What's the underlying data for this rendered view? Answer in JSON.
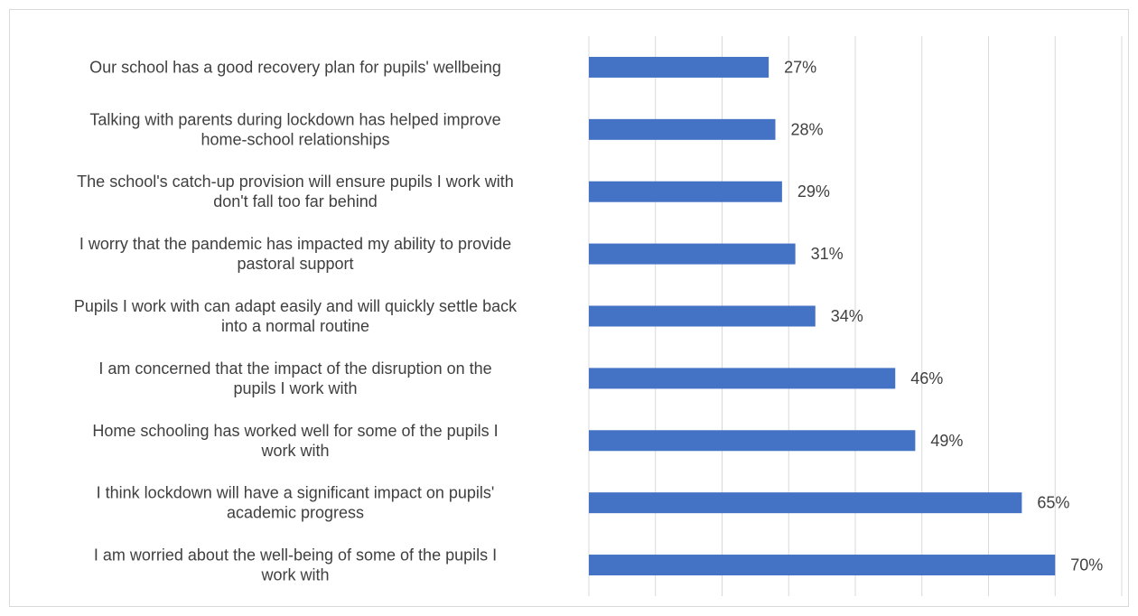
{
  "chart_data": {
    "type": "bar",
    "orientation": "horizontal",
    "title": "",
    "xlabel": "",
    "ylabel": "",
    "xlim": [
      0,
      80
    ],
    "grid": true,
    "legend": "none",
    "bar_color": "#4472c4",
    "categories": [
      [
        "Our school has a good recovery plan for pupils' wellbeing"
      ],
      [
        "Talking with parents during lockdown has helped improve",
        "home-school relationships"
      ],
      [
        "The school's catch-up provision will ensure pupils I work with",
        "don't fall too far behind"
      ],
      [
        "I worry that the pandemic has impacted my ability to provide",
        "pastoral support"
      ],
      [
        "Pupils I work with can adapt easily and will quickly settle back",
        "into a normal routine"
      ],
      [
        "I am concerned that the impact of the disruption on the",
        "pupils I work with"
      ],
      [
        "Home schooling has worked well for some of the pupils I",
        "work with"
      ],
      [
        "I think lockdown will have a significant impact on pupils'",
        "academic progress"
      ],
      [
        "I am worried about the well-being of some of the pupils I",
        "work with"
      ]
    ],
    "values": [
      27,
      28,
      29,
      31,
      34,
      46,
      49,
      65,
      70
    ],
    "value_labels": [
      "27%",
      "28%",
      "29%",
      "31%",
      "34%",
      "46%",
      "49%",
      "65%",
      "70%"
    ]
  }
}
